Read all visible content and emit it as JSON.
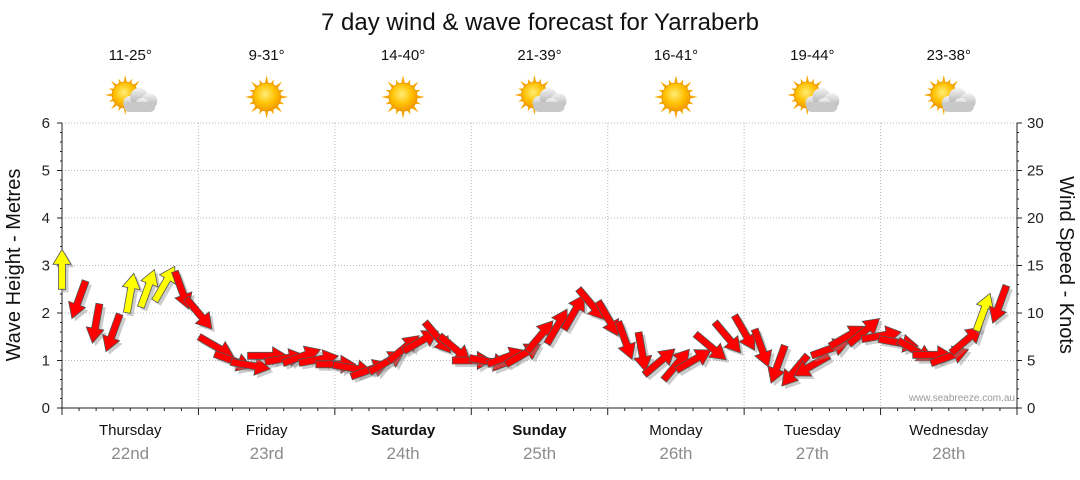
{
  "chart_data": {
    "type": "line",
    "title": "7 day wind & wave forecast for Yarraberb",
    "ylabel_left": "Wave Height - Metres",
    "ylabel_right": "Wind Speed - Knots",
    "ylim_left": [
      0,
      6
    ],
    "ylim_right": [
      0,
      30
    ],
    "yticks_left": [
      "0",
      "1",
      "2",
      "3",
      "4",
      "5",
      "6"
    ],
    "yticks_right": [
      "0",
      "5",
      "10",
      "15",
      "20",
      "25",
      "30"
    ],
    "grid": true,
    "watermark": "www.seabreeze.com.au",
    "days": [
      {
        "day": "Thursday",
        "date": "22nd",
        "temp": "11-25°",
        "weather": "partly-cloudy-icon",
        "bold": false
      },
      {
        "day": "Friday",
        "date": "23rd",
        "temp": "9-31°",
        "weather": "sunny-icon",
        "bold": false
      },
      {
        "day": "Saturday",
        "date": "24th",
        "temp": "14-40°",
        "weather": "sunny-icon",
        "bold": true
      },
      {
        "day": "Sunday",
        "date": "25th",
        "temp": "21-39°",
        "weather": "partly-cloudy-icon",
        "bold": true
      },
      {
        "day": "Monday",
        "date": "26th",
        "temp": "16-41°",
        "weather": "sunny-icon",
        "bold": false
      },
      {
        "day": "Tuesday",
        "date": "27th",
        "temp": "19-44°",
        "weather": "partly-cloudy-icon",
        "bold": false
      },
      {
        "day": "Wednesday",
        "date": "28th",
        "temp": "23-38°",
        "weather": "partly-cloudy-icon",
        "bold": false
      }
    ],
    "series": [
      {
        "name": "Wind Speed - Knots",
        "axis": "right",
        "x_hours": [
          0,
          3,
          6,
          9,
          12,
          15,
          18,
          21,
          24,
          27,
          30,
          33,
          36,
          39,
          42,
          45,
          48,
          51,
          54,
          57,
          60,
          63,
          66,
          69,
          72,
          75,
          78,
          81,
          84,
          87,
          90,
          93,
          96,
          99,
          102,
          105,
          108,
          111,
          114,
          117,
          120,
          123,
          126,
          129,
          132,
          135,
          138,
          141,
          144,
          147,
          150,
          153,
          156,
          159,
          162,
          165
        ],
        "values": [
          14.5,
          11.5,
          9,
          8,
          12,
          12.5,
          13,
          12.5,
          10,
          6.5,
          5,
          4.5,
          5.5,
          5.2,
          5.4,
          5.1,
          4.6,
          4.2,
          4,
          4.8,
          6.2,
          7,
          7.5,
          6.3,
          5,
          4.9,
          5.3,
          5.6,
          7.5,
          8.5,
          10,
          11,
          9.5,
          7.2,
          6,
          4.8,
          4.5,
          5,
          6.5,
          7.5,
          8,
          6.4,
          4.7,
          4,
          4.5,
          6.2,
          7.5,
          8,
          7.6,
          6.9,
          6.1,
          5.6,
          5.4,
          7.1,
          10,
          11
        ],
        "colors": [
          "#ffff00",
          "#ff0000",
          "#ff0000",
          "#ff0000",
          "#ffff00",
          "#ffff00",
          "#ffff00",
          "#ff0000",
          "#ff0000",
          "#ff0000",
          "#ff0000",
          "#ff0000",
          "#ff0000",
          "#ff0000",
          "#ff0000",
          "#ff0000",
          "#ff0000",
          "#ff0000",
          "#ff0000",
          "#ff0000",
          "#ff0000",
          "#ff0000",
          "#ff0000",
          "#ff0000",
          "#ff0000",
          "#ff0000",
          "#ff0000",
          "#ff0000",
          "#ff0000",
          "#ff0000",
          "#ff0000",
          "#ff0000",
          "#ff0000",
          "#ff0000",
          "#ff0000",
          "#ff0000",
          "#ff0000",
          "#ff0000",
          "#ff0000",
          "#ff0000",
          "#ff0000",
          "#ff0000",
          "#ff0000",
          "#ff0000",
          "#ff0000",
          "#ff0000",
          "#ff0000",
          "#ff0000",
          "#ff0000",
          "#ff0000",
          "#ff0000",
          "#ff0000",
          "#ff0000",
          "#ff0000",
          "#ffff00",
          "#ff0000"
        ],
        "direction_deg": [
          0,
          200,
          190,
          200,
          10,
          20,
          30,
          160,
          140,
          120,
          110,
          100,
          90,
          80,
          70,
          80,
          90,
          100,
          70,
          60,
          50,
          60,
          140,
          130,
          90,
          100,
          70,
          60,
          40,
          30,
          30,
          140,
          150,
          160,
          170,
          50,
          40,
          60,
          130,
          140,
          150,
          160,
          200,
          220,
          240,
          70,
          60,
          50,
          80,
          100,
          120,
          90,
          70,
          50,
          20,
          200
        ]
      }
    ],
    "colors": {
      "wind_strong": "#ff0000",
      "wind_light": "#ffff00"
    }
  }
}
